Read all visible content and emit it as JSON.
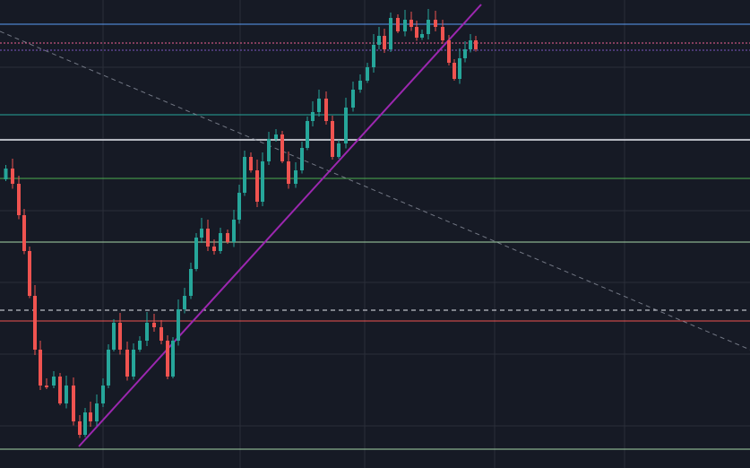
{
  "chart_data": {
    "type": "candlestick",
    "title": "",
    "xlabel": "",
    "ylabel": "",
    "ylim": [
      0,
      522
    ],
    "grid": true,
    "colors": {
      "background": "#161a25",
      "grid": "#2a2e39",
      "up": "#26a69a",
      "down": "#ef5350",
      "trendline": "#9c27b0",
      "dashed_trend": "#8a8f9c"
    },
    "candles": [
      [
        32,
        11
      ],
      [
        37,
        11
      ],
      [
        12,
        23
      ],
      [
        28,
        10
      ],
      [
        34,
        28
      ],
      [
        44,
        29
      ],
      [
        53,
        23
      ],
      [
        58,
        28
      ],
      [
        36,
        17
      ],
      [
        37,
        6
      ],
      [
        8,
        23
      ],
      [
        9,
        22
      ],
      [
        6,
        6
      ],
      [
        6,
        8
      ],
      [
        19,
        20
      ],
      [
        16,
        6
      ],
      [
        12,
        10
      ],
      [
        15,
        19
      ],
      [
        14,
        25
      ],
      [
        10,
        11
      ],
      [
        30,
        20
      ],
      [
        42,
        24
      ],
      [
        51,
        20
      ],
      [
        58,
        23
      ],
      [
        58,
        30
      ],
      [
        46,
        36
      ],
      [
        37,
        24
      ],
      [
        24,
        12
      ],
      [
        18,
        28
      ],
      [
        27,
        32
      ],
      [
        37,
        22
      ],
      [
        46,
        26
      ],
      [
        51,
        18
      ],
      [
        56,
        9
      ],
      [
        48,
        2
      ],
      [
        46,
        10
      ],
      [
        49,
        10
      ],
      [
        64,
        23
      ],
      [
        60,
        14
      ],
      [
        60,
        13
      ],
      [
        66,
        14
      ],
      [
        59,
        4
      ],
      [
        51,
        3
      ],
      [
        53,
        8
      ],
      [
        54,
        8
      ],
      [
        61,
        18
      ],
      [
        70,
        20
      ],
      [
        70,
        11
      ],
      [
        74,
        9
      ],
      [
        76,
        16
      ],
      [
        77,
        7
      ],
      [
        79,
        11
      ]
    ],
    "horizontal_levels": [
      {
        "value": 495,
        "color": "#5b9cf5",
        "style": "solid"
      },
      {
        "value": 474,
        "color": "#f06292",
        "style": "dotted"
      },
      {
        "value": 466,
        "color": "#7e57c2",
        "style": "dotted"
      },
      {
        "value": 394,
        "color": "#26a69a",
        "style": "solid"
      },
      {
        "value": 366,
        "color": "#e6e9f0",
        "style": "solid"
      },
      {
        "value": 323,
        "color": "#4caf50",
        "style": "solid"
      },
      {
        "value": 252,
        "color": "#a5d6a7",
        "style": "solid"
      },
      {
        "value": 176,
        "color": "#e6e9f0",
        "style": "dashed"
      },
      {
        "value": 164,
        "color": "#ef5350",
        "style": "solid"
      },
      {
        "value": 21,
        "color": "#a5d6a7",
        "style": "solid"
      }
    ]
  }
}
